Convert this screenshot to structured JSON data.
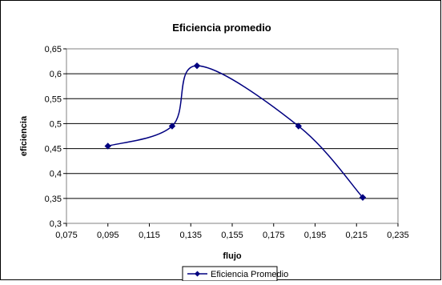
{
  "chart_data": {
    "type": "line",
    "title": "Eficiencia promedio",
    "xlabel": "flujo",
    "ylabel": "eficiencia",
    "xlim": [
      0.075,
      0.235
    ],
    "ylim": [
      0.3,
      0.65
    ],
    "x_ticks": [
      "0,075",
      "0,095",
      "0,115",
      "0,135",
      "0,155",
      "0,175",
      "0,195",
      "0,215",
      "0,235"
    ],
    "y_ticks": [
      "0,3",
      "0,35",
      "0,4",
      "0,45",
      "0,5",
      "0,55",
      "0,6",
      "0,65"
    ],
    "grid": "horizontal",
    "legend_position": "bottom",
    "series": [
      {
        "name": "Eficiencia Promedio",
        "color": "#000080",
        "marker": "diamond",
        "smooth": true,
        "x": [
          0.095,
          0.126,
          0.138,
          0.187,
          0.218
        ],
        "y": [
          0.455,
          0.495,
          0.616,
          0.495,
          0.352
        ]
      }
    ]
  }
}
